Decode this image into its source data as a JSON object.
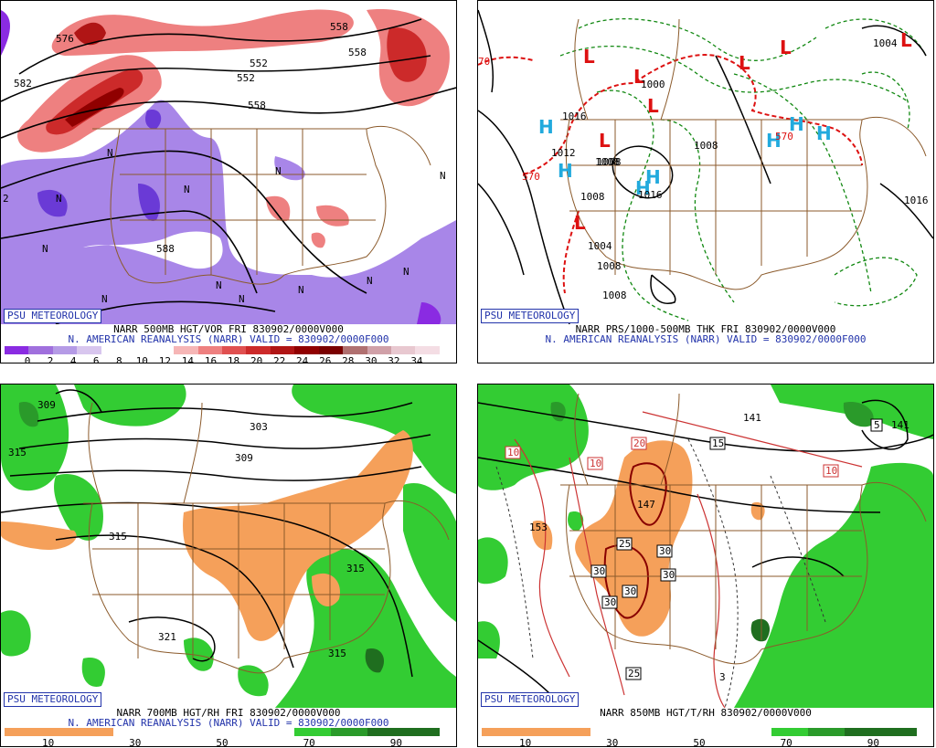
{
  "panels": [
    {
      "psu_label": "PSU METEOROLOGY",
      "title": "NARR 500MB HGT/VOR FRI 830902/0000V000",
      "subtitle": "N. AMERICAN REANALYSIS (NARR) VALID = 830902/0000F000",
      "colorbar": {
        "colors": [
          "#8a2be2",
          "#a070dd",
          "#b59be6",
          "#d8c6ee",
          "#ffffff",
          "#ffffff",
          "#ffffff",
          "#f6b6b6",
          "#ee8080",
          "#e05050",
          "#cc2a2a",
          "#b01515",
          "#900000",
          "#7a0000",
          "#b07070",
          "#d0a0a8",
          "#e8c8d0",
          "#f4dde4"
        ],
        "ticks": [
          "0",
          "2",
          "4",
          "6",
          "8",
          "10",
          "12",
          "14",
          "16",
          "18",
          "20",
          "22",
          "24",
          "26",
          "28",
          "30",
          "32",
          "34"
        ]
      },
      "contour_labels": [
        "576",
        "552",
        "558",
        "582",
        "552",
        "558",
        "588",
        "2",
        "558"
      ]
    },
    {
      "psu_label": "PSU METEOROLOGY",
      "title": "NARR PRS/1000-500MB THK FRI 830902/0000V000",
      "subtitle": "N. AMERICAN REANALYSIS (NARR) VALID = 830902/0000F000",
      "low_symbol": "L",
      "high_symbol": "H",
      "contour_labels": [
        "1004",
        "1016",
        "1012",
        "1008",
        "1000",
        "570",
        "570",
        "1008",
        "1008",
        "1004",
        "1008",
        "1016",
        "1016",
        "1008",
        "1008",
        "1004"
      ]
    },
    {
      "psu_label": "PSU METEOROLOGY",
      "title": "NARR 700MB HGT/RH FRI 830902/0000V000",
      "subtitle": "N. AMERICAN REANALYSIS (NARR) VALID = 830902/0000F000",
      "colorbar": {
        "colors": [
          "#f5a05a",
          "#f5a05a",
          "#f5a05a",
          "#ffffff",
          "#ffffff",
          "#ffffff",
          "#ffffff",
          "#ffffff",
          "#33cc33",
          "#2a9a2a",
          "#1f6e1f",
          "#1f6e1f"
        ],
        "ticks": [
          "10",
          "30",
          "50",
          "70",
          "90"
        ]
      },
      "contour_labels": [
        "309",
        "315",
        "303",
        "309",
        "315",
        "315",
        "321",
        "315"
      ]
    },
    {
      "psu_label": "PSU METEOROLOGY",
      "title": "NARR 850MB HGT/T/RH 830902/0000V000",
      "subtitle": "",
      "colorbar": {
        "colors": [
          "#f5a05a",
          "#f5a05a",
          "#f5a05a",
          "#ffffff",
          "#ffffff",
          "#ffffff",
          "#ffffff",
          "#ffffff",
          "#33cc33",
          "#2a9a2a",
          "#1f6e1f",
          "#1f6e1f"
        ],
        "ticks": [
          "10",
          "30",
          "50",
          "70",
          "90"
        ]
      },
      "contour_labels": [
        "141",
        "5",
        "141",
        "10",
        "20",
        "15",
        "10",
        "10",
        "147",
        "153",
        "25",
        "30",
        "30",
        "30",
        "30",
        "30",
        "25",
        "3"
      ]
    }
  ]
}
